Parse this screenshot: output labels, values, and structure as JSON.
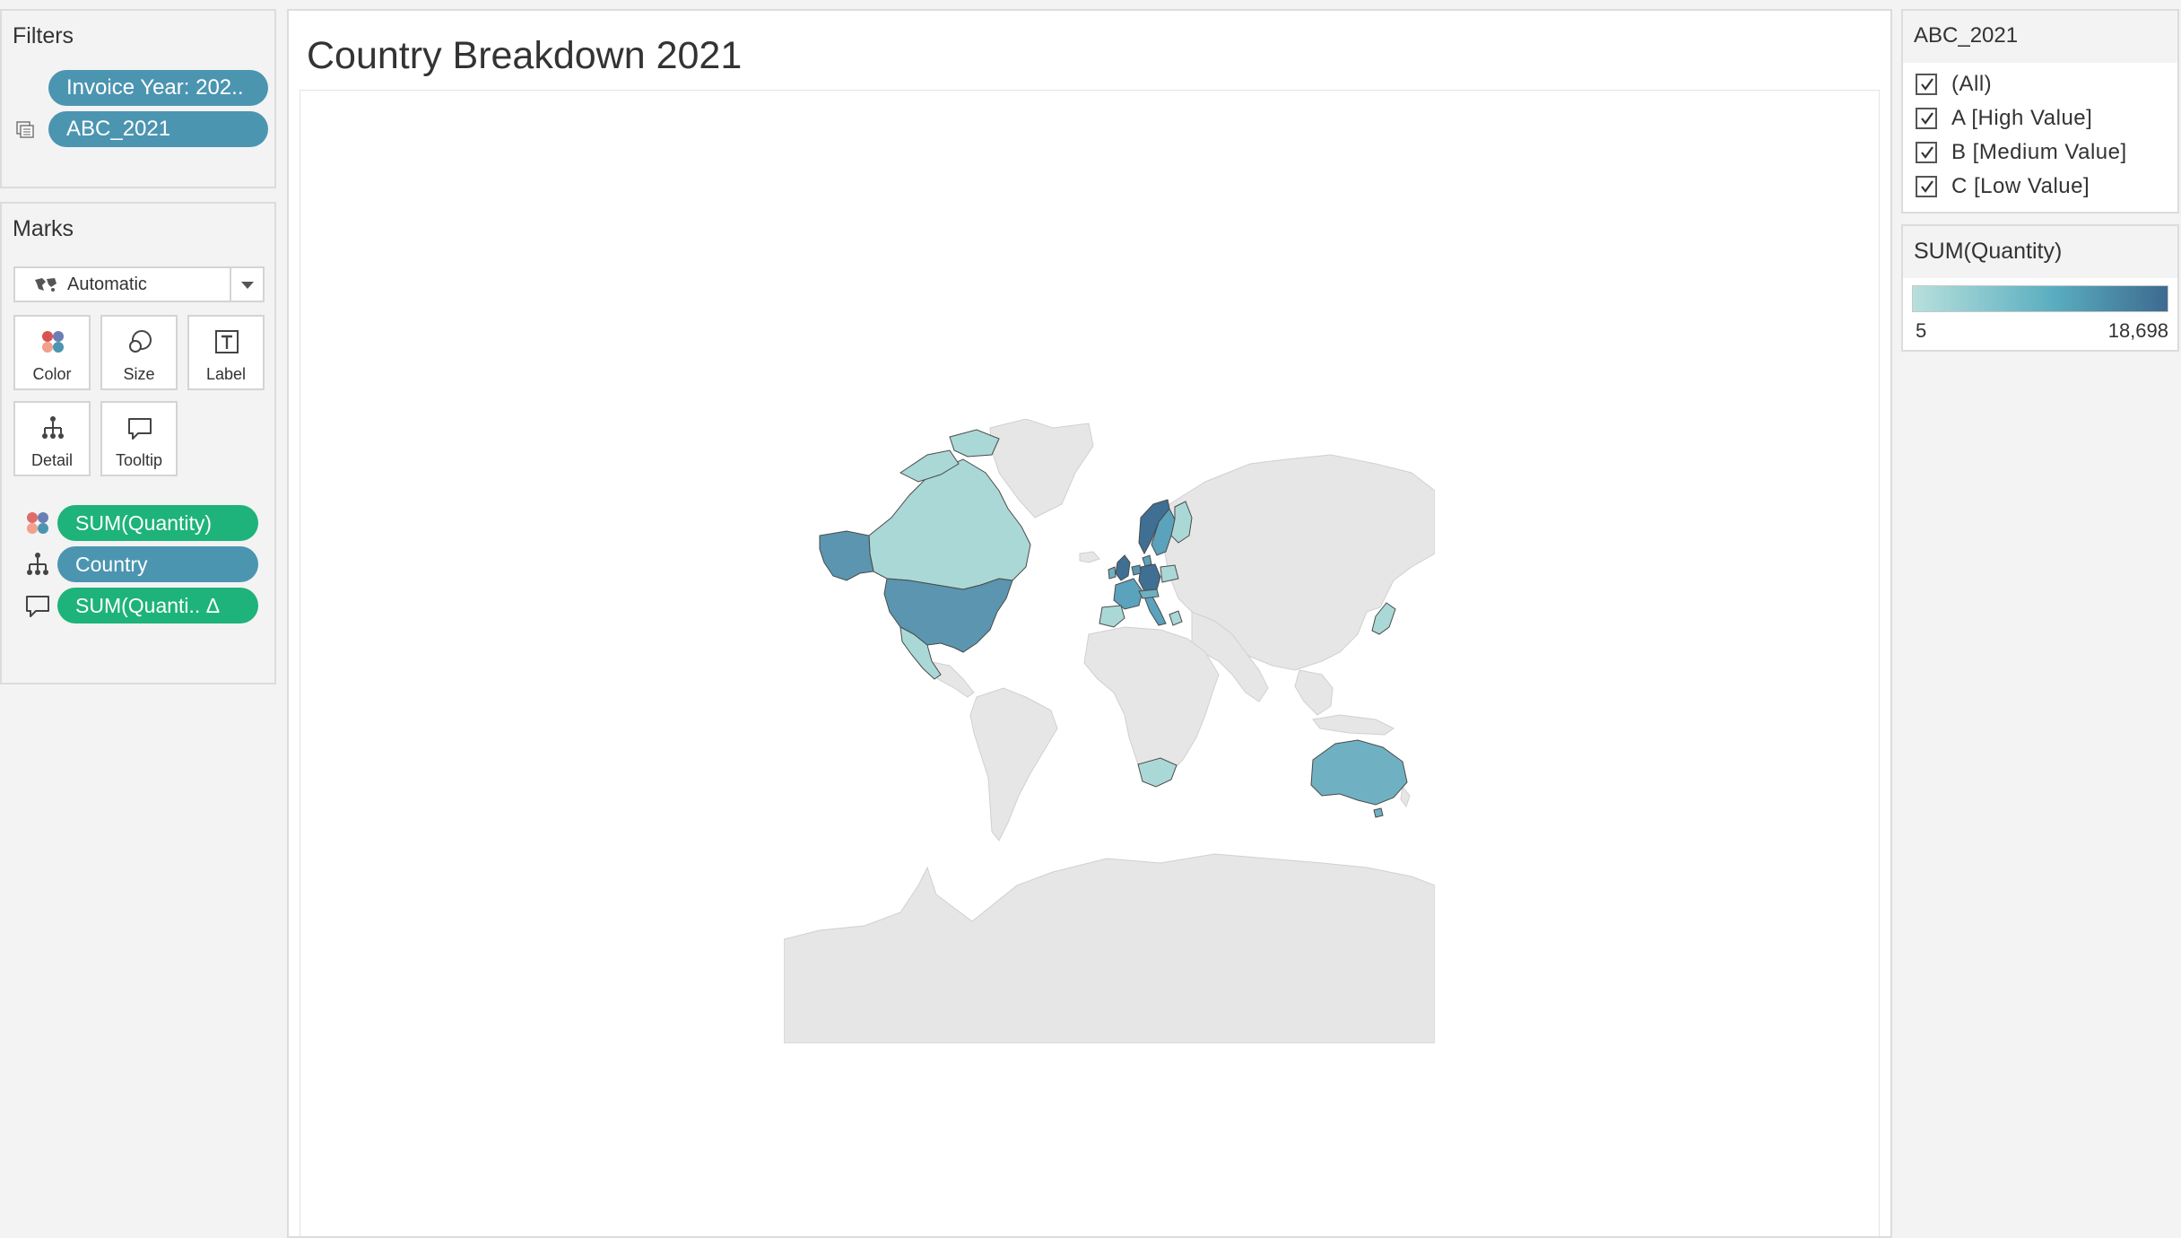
{
  "filters": {
    "title": "Filters",
    "pills": [
      {
        "label": "Invoice Year: 202.."
      },
      {
        "label": "ABC_2021"
      }
    ]
  },
  "marks": {
    "title": "Marks",
    "mark_type": "Automatic",
    "buttons": [
      {
        "label": "Color",
        "icon": "color-dots-icon"
      },
      {
        "label": "Size",
        "icon": "size-circles-icon"
      },
      {
        "label": "Label",
        "icon": "text-label-icon"
      },
      {
        "label": "Detail",
        "icon": "detail-hierarchy-icon"
      },
      {
        "label": "Tooltip",
        "icon": "speech-bubble-icon"
      }
    ],
    "shelf": [
      {
        "label": "SUM(Quantity)",
        "icon": "color-dots-icon",
        "type": "measure"
      },
      {
        "label": "Country",
        "icon": "detail-hierarchy-icon",
        "type": "dimension"
      },
      {
        "label": "SUM(Quanti.. Δ",
        "icon": "speech-bubble-icon",
        "type": "measure"
      }
    ]
  },
  "sheet": {
    "title": "Country Breakdown 2021"
  },
  "legend_abc": {
    "title": "ABC_2021",
    "items": [
      {
        "label": "(All)",
        "checked": true
      },
      {
        "label": "A [High Value]",
        "checked": true
      },
      {
        "label": "B [Medium Value]",
        "checked": true
      },
      {
        "label": "C [Low Value]",
        "checked": true
      }
    ]
  },
  "legend_quantity": {
    "title": "SUM(Quantity)",
    "min": "5",
    "max": "18,698",
    "color_low": "#b8e0dc",
    "color_high": "#3d6a90"
  },
  "colors": {
    "pill_blue": "#4b95b1",
    "pill_green": "#1db37a",
    "map_no_data": "#e6e6e6"
  }
}
